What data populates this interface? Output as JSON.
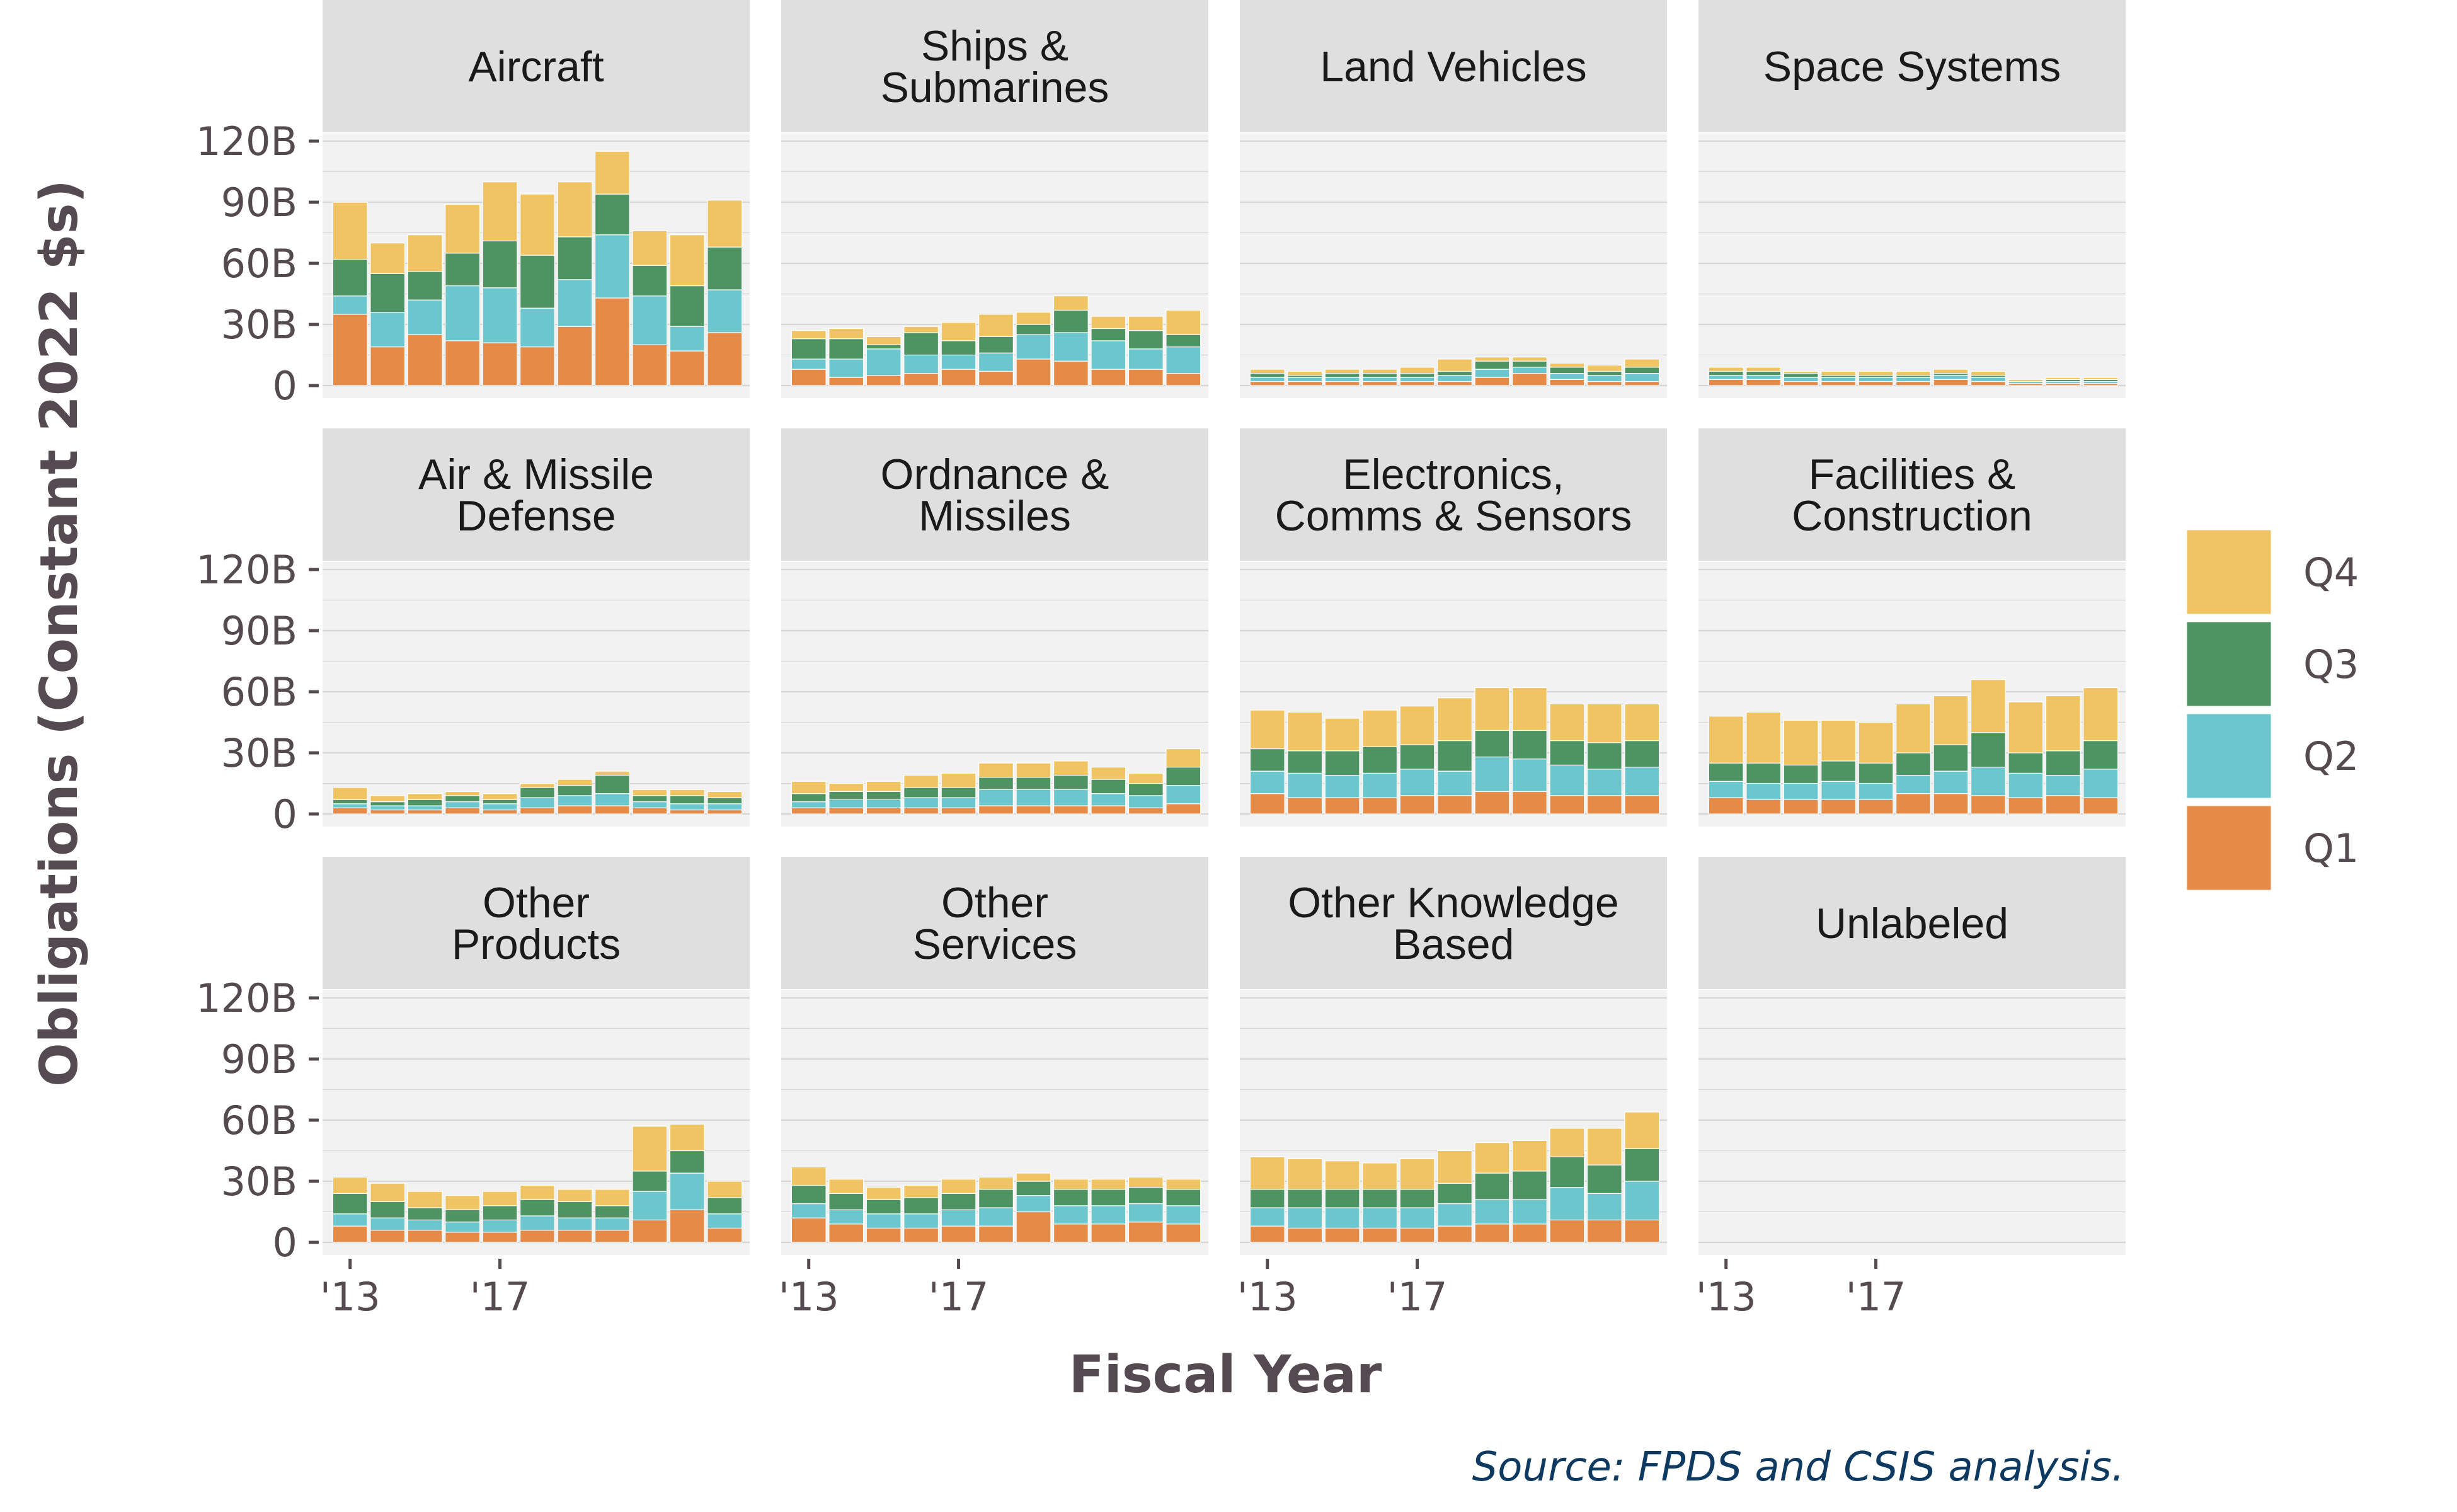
{
  "colors": {
    "Q1": "#e68a47",
    "Q2": "#6bc6cd",
    "Q3": "#4d9462",
    "Q4": "#f0c463",
    "panel_bg": "#f2f2f2",
    "strip_bg": "#dfdfdf",
    "grid": "#d6d6d6",
    "axis_text": "#554a4f",
    "source_text": "#0e3a62"
  },
  "chart_data": {
    "type": "bar",
    "stacked": true,
    "faceted": true,
    "xlabel": "Fiscal Year",
    "ylabel": "Obligations (Constant 2022 $s)",
    "ylim": [
      0,
      120
    ],
    "y_ticks": [
      0,
      30,
      60,
      90,
      120
    ],
    "y_tick_labels": [
      "0",
      "30B",
      "60B",
      "90B",
      "120B"
    ],
    "x_ticks": [
      2013,
      2017
    ],
    "x_tick_labels": [
      "'13",
      "'17"
    ],
    "years": [
      2013,
      2014,
      2015,
      2016,
      2017,
      2018,
      2019,
      2020,
      2021,
      2022,
      2023
    ],
    "legend": [
      "Q4",
      "Q3",
      "Q2",
      "Q1"
    ],
    "legend_position": "right",
    "source": "Source: FPDS and CSIS analysis.",
    "panels": [
      {
        "title": "Aircraft",
        "series": {
          "Q1": [
            35,
            19,
            25,
            22,
            21,
            19,
            29,
            43,
            20,
            17,
            26
          ],
          "Q2": [
            9,
            17,
            17,
            27,
            27,
            19,
            23,
            31,
            24,
            12,
            21
          ],
          "Q3": [
            18,
            19,
            14,
            16,
            23,
            26,
            21,
            20,
            15,
            20,
            21
          ],
          "Q4": [
            28,
            15,
            18,
            24,
            29,
            30,
            27,
            21,
            17,
            25,
            23
          ]
        }
      },
      {
        "title": "Ships & Submarines",
        "series": {
          "Q1": [
            8,
            4,
            5,
            6,
            8,
            7,
            13,
            12,
            8,
            8,
            6
          ],
          "Q2": [
            5,
            9,
            13,
            9,
            7,
            9,
            12,
            14,
            14,
            10,
            13
          ],
          "Q3": [
            10,
            10,
            2,
            11,
            7,
            8,
            5,
            11,
            6,
            9,
            6
          ],
          "Q4": [
            4,
            5,
            4,
            3,
            9,
            11,
            6,
            7,
            6,
            7,
            12
          ]
        }
      },
      {
        "title": "Land Vehicles",
        "series": {
          "Q1": [
            2,
            2,
            2,
            2,
            2,
            2,
            4,
            6,
            3,
            2,
            2
          ],
          "Q2": [
            2,
            2,
            2,
            2,
            2,
            3,
            4,
            3,
            3,
            3,
            4
          ],
          "Q3": [
            2,
            1,
            2,
            2,
            2,
            2,
            4,
            3,
            3,
            2,
            3
          ],
          "Q4": [
            2,
            2,
            2,
            2,
            3,
            6,
            2,
            2,
            2,
            3,
            4
          ]
        }
      },
      {
        "title": "Space Systems",
        "series": {
          "Q1": [
            3,
            3,
            2,
            2,
            2,
            2,
            3,
            2,
            1,
            1,
            1
          ],
          "Q2": [
            2,
            2,
            2,
            2,
            2,
            2,
            2,
            2,
            1,
            1,
            1
          ],
          "Q3": [
            2,
            2,
            2,
            1,
            1,
            1,
            1,
            1,
            0,
            1,
            1
          ],
          "Q4": [
            2,
            2,
            1,
            2,
            2,
            2,
            2,
            2,
            1,
            1,
            1
          ]
        }
      },
      {
        "title": "Air & Missile Defense",
        "series": {
          "Q1": [
            3,
            2,
            2,
            3,
            2,
            3,
            4,
            4,
            3,
            2,
            2
          ],
          "Q2": [
            2,
            2,
            2,
            3,
            3,
            5,
            5,
            6,
            3,
            3,
            3
          ],
          "Q3": [
            2,
            2,
            3,
            3,
            2,
            5,
            5,
            9,
            3,
            4,
            3
          ],
          "Q4": [
            6,
            3,
            3,
            2,
            3,
            2,
            3,
            2,
            3,
            3,
            3
          ]
        }
      },
      {
        "title": "Ordnance & Missiles",
        "series": {
          "Q1": [
            3,
            3,
            3,
            3,
            3,
            4,
            4,
            4,
            4,
            3,
            5
          ],
          "Q2": [
            3,
            4,
            4,
            5,
            5,
            8,
            8,
            8,
            6,
            6,
            9
          ],
          "Q3": [
            4,
            4,
            4,
            5,
            5,
            6,
            6,
            7,
            7,
            6,
            9
          ],
          "Q4": [
            6,
            4,
            5,
            6,
            7,
            7,
            7,
            7,
            6,
            5,
            9
          ]
        }
      },
      {
        "title": "Electronics, Comms & Sensors",
        "series": {
          "Q1": [
            10,
            8,
            8,
            8,
            9,
            9,
            11,
            11,
            9,
            9,
            9
          ],
          "Q2": [
            11,
            12,
            11,
            12,
            13,
            12,
            17,
            16,
            15,
            13,
            14
          ],
          "Q3": [
            11,
            11,
            12,
            13,
            12,
            15,
            13,
            14,
            12,
            13,
            13
          ],
          "Q4": [
            19,
            19,
            16,
            18,
            19,
            21,
            21,
            21,
            18,
            19,
            18
          ]
        }
      },
      {
        "title": "Facilities & Construction",
        "series": {
          "Q1": [
            8,
            7,
            7,
            7,
            7,
            10,
            10,
            9,
            8,
            9,
            8
          ],
          "Q2": [
            8,
            8,
            8,
            9,
            8,
            9,
            11,
            14,
            12,
            10,
            14
          ],
          "Q3": [
            9,
            10,
            9,
            10,
            10,
            11,
            13,
            17,
            10,
            12,
            14
          ],
          "Q4": [
            23,
            25,
            22,
            20,
            20,
            24,
            24,
            26,
            25,
            27,
            26
          ]
        }
      },
      {
        "title": "Other Products",
        "series": {
          "Q1": [
            8,
            6,
            6,
            5,
            5,
            6,
            6,
            6,
            11,
            16,
            7
          ],
          "Q2": [
            6,
            6,
            5,
            5,
            6,
            7,
            6,
            6,
            14,
            18,
            7
          ],
          "Q3": [
            10,
            8,
            6,
            6,
            7,
            8,
            8,
            6,
            10,
            11,
            8
          ],
          "Q4": [
            8,
            9,
            8,
            7,
            7,
            7,
            6,
            8,
            22,
            13,
            8
          ]
        }
      },
      {
        "title": "Other Services",
        "series": {
          "Q1": [
            12,
            9,
            7,
            7,
            8,
            8,
            15,
            9,
            9,
            10,
            9
          ],
          "Q2": [
            7,
            7,
            7,
            7,
            8,
            9,
            8,
            9,
            9,
            9,
            9
          ],
          "Q3": [
            9,
            8,
            7,
            8,
            8,
            9,
            7,
            8,
            8,
            8,
            8
          ],
          "Q4": [
            9,
            7,
            6,
            6,
            7,
            6,
            4,
            5,
            5,
            5,
            5
          ]
        }
      },
      {
        "title": "Other Knowledge Based",
        "series": {
          "Q1": [
            8,
            7,
            7,
            7,
            7,
            8,
            9,
            9,
            11,
            11,
            11
          ],
          "Q2": [
            9,
            10,
            10,
            10,
            10,
            11,
            12,
            12,
            16,
            13,
            19
          ],
          "Q3": [
            9,
            9,
            9,
            9,
            9,
            10,
            13,
            14,
            15,
            14,
            16
          ],
          "Q4": [
            16,
            15,
            14,
            13,
            15,
            16,
            15,
            15,
            14,
            18,
            18
          ]
        }
      },
      {
        "title": "Unlabeled",
        "series": {
          "Q1": [
            0,
            0,
            0,
            0,
            0,
            0,
            0,
            0,
            0,
            0,
            0
          ],
          "Q2": [
            0,
            0,
            0,
            0,
            0,
            0,
            0,
            0,
            0,
            0,
            0
          ],
          "Q3": [
            0,
            0,
            0,
            0,
            0,
            0,
            0,
            0,
            0,
            0,
            0
          ],
          "Q4": [
            0,
            0,
            0,
            0,
            0,
            0,
            0,
            0,
            0,
            0,
            0
          ]
        }
      }
    ]
  }
}
